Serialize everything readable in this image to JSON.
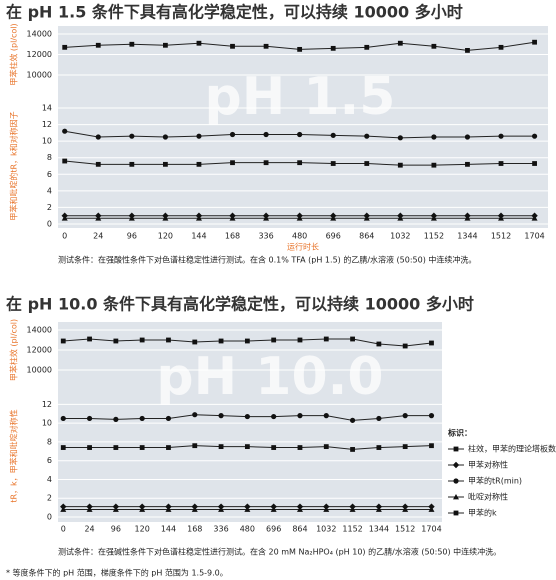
{
  "chart_data": [
    {
      "type": "line",
      "title": "在 pH 1.5 条件下具有高化学稳定性，可以持续 10000 多小时",
      "watermark": "pH 1.5",
      "x_label": "运行时长",
      "y_label": "甲苯和吡啶的tR，k和对称因子",
      "y2_label": "甲苯柱效 (pl/col)",
      "categories": [
        "0",
        "24",
        "96",
        "120",
        "144",
        "168",
        "336",
        "480",
        "696",
        "864",
        "1032",
        "1152",
        "1344",
        "1512",
        "1704"
      ],
      "ylim": [
        0,
        14
      ],
      "yticks": [
        0,
        2,
        4,
        6,
        8,
        10,
        12,
        14
      ],
      "y2lim": [
        10000,
        14000
      ],
      "y2ticks": [
        10000,
        12000,
        14000
      ],
      "grid": true,
      "series": [
        {
          "marker": "square",
          "color": "#222",
          "axis": "y2",
          "values": [
            12700,
            12900,
            13000,
            12900,
            13100,
            12800,
            12800,
            12500,
            12600,
            12700,
            13100,
            12800,
            12400,
            12700,
            13200
          ]
        },
        {
          "marker": "circle",
          "color": "#222",
          "values": [
            11.2,
            10.5,
            10.6,
            10.5,
            10.6,
            10.8,
            10.8,
            10.8,
            10.7,
            10.6,
            10.4,
            10.5,
            10.5,
            10.6,
            10.6
          ]
        },
        {
          "marker": "square",
          "color": "#222",
          "values": [
            7.6,
            7.2,
            7.2,
            7.2,
            7.2,
            7.4,
            7.4,
            7.4,
            7.3,
            7.3,
            7.1,
            7.1,
            7.2,
            7.3,
            7.3
          ]
        },
        {
          "marker": "diamond",
          "color": "#222",
          "values": [
            1.0,
            1.0,
            1.0,
            1.0,
            1.0,
            1.0,
            1.0,
            1.0,
            1.0,
            1.0,
            1.0,
            1.0,
            1.0,
            1.0,
            1.0
          ]
        },
        {
          "marker": "triangle",
          "color": "#222",
          "values": [
            0.7,
            0.7,
            0.7,
            0.7,
            0.7,
            0.7,
            0.7,
            0.7,
            0.7,
            0.7,
            0.7,
            0.7,
            0.7,
            0.7,
            0.7
          ]
        }
      ],
      "footnote": "测试条件：在强酸性条件下对色谱柱稳定性进行测试。在含 0.1% TFA (pH 1.5) 的乙腈/水溶液 (50:50) 中连续冲洗。"
    },
    {
      "type": "line",
      "title": "在 pH 10.0 条件下具有高化学稳定性，可以持续 10000 多小时",
      "watermark": "pH 10.0",
      "y_label": "tR，k，甲苯和吡啶对称性",
      "y2_label": "甲苯柱效 (pl/col)",
      "categories": [
        "0",
        "24",
        "96",
        "120",
        "144",
        "168",
        "336",
        "480",
        "696",
        "864",
        "1032",
        "1152",
        "1344",
        "1512",
        "1704"
      ],
      "ylim": [
        0,
        13
      ],
      "yticks": [
        0,
        2,
        4,
        6,
        8,
        10,
        12
      ],
      "y2lim": [
        10000,
        14000
      ],
      "y2ticks": [
        10000,
        12000,
        14000
      ],
      "grid": true,
      "legend_title": "标识：",
      "series": [
        {
          "name": "柱效，甲苯的理论塔板数",
          "marker": "square",
          "color": "#222",
          "axis": "y2",
          "values": [
            12900,
            13100,
            12900,
            13000,
            13000,
            12800,
            12900,
            12900,
            13000,
            13000,
            13100,
            13100,
            12600,
            12400,
            12700
          ]
        },
        {
          "name": "甲苯对称性",
          "marker": "diamond",
          "color": "#222",
          "values": [
            1.1,
            1.1,
            1.1,
            1.1,
            1.1,
            1.1,
            1.1,
            1.1,
            1.1,
            1.1,
            1.1,
            1.1,
            1.1,
            1.1,
            1.1
          ]
        },
        {
          "name": "甲苯的tR(min)",
          "marker": "circle",
          "color": "#222",
          "values": [
            10.5,
            10.5,
            10.4,
            10.5,
            10.5,
            10.9,
            10.8,
            10.7,
            10.7,
            10.8,
            10.8,
            10.3,
            10.5,
            10.8,
            10.8
          ]
        },
        {
          "name": "吡啶对称性",
          "marker": "triangle",
          "color": "#222",
          "values": [
            0.8,
            0.8,
            0.8,
            0.8,
            0.8,
            0.8,
            0.8,
            0.8,
            0.8,
            0.8,
            0.8,
            0.8,
            0.8,
            0.8,
            0.8
          ]
        },
        {
          "name": "甲苯的k",
          "marker": "square",
          "color": "#222",
          "values": [
            7.4,
            7.4,
            7.4,
            7.4,
            7.4,
            7.6,
            7.5,
            7.5,
            7.4,
            7.4,
            7.5,
            7.2,
            7.4,
            7.5,
            7.6
          ]
        }
      ],
      "footnote": "测试条件：在强碱性条件下对色谱柱稳定性进行测试。在含 20 mM Na₂HPO₄ (pH 10) 的乙腈/水溶液 (50:50) 中连续冲洗。"
    }
  ],
  "note": "* 等度条件下的 pH 范围，梯度条件下的 pH 范围为 1.5-9.0。"
}
